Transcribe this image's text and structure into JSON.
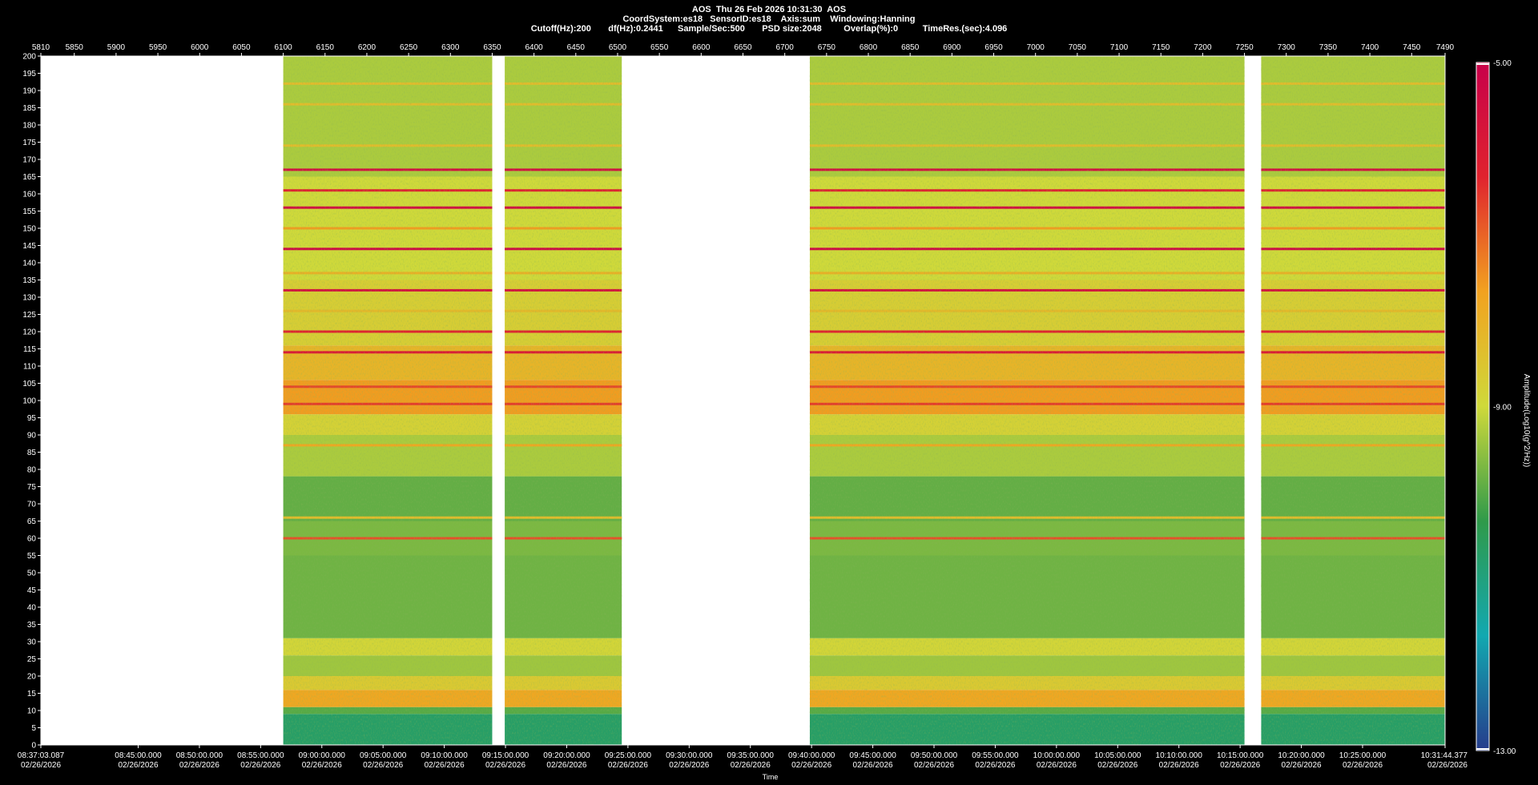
{
  "header": {
    "line1": "AOS  Thu 26 Feb 2026 10:31:30  AOS",
    "line2": "CoordSystem:es18   SensorID:es18    Axis:sum    Windowing:Hanning",
    "line3": "Cutoff(Hz):200       df(Hz):0.2441      Sample/Sec:500       PSD size:2048         Overlap(%):0          TimeRes.(sec):4.096"
  },
  "chart_data": {
    "type": "heatmap",
    "title": "AOS  Thu 26 Feb 2026 10:31:30  AOS",
    "xlabel": "Time",
    "ylabel": "",
    "colorbar_label": "Amplitude(Log10(g^2/Hz))",
    "colorbar_ticks": [
      "-5.00",
      "-9.00",
      "-13.00"
    ],
    "colorbar_range": [
      -13,
      -5
    ],
    "colormap": [
      "#263c8c",
      "#12a8b0",
      "#2f9a4a",
      "#cfd93a",
      "#f2a21f",
      "#e0232e",
      "#c8004a"
    ],
    "ylim": [
      0,
      200
    ],
    "y_ticks": [
      0,
      5,
      10,
      15,
      20,
      25,
      30,
      35,
      40,
      45,
      50,
      55,
      60,
      65,
      70,
      75,
      80,
      85,
      90,
      95,
      100,
      105,
      110,
      115,
      120,
      125,
      130,
      135,
      140,
      145,
      150,
      155,
      160,
      165,
      170,
      175,
      180,
      185,
      190,
      195,
      200
    ],
    "record_axis": {
      "range": [
        5810,
        7490
      ],
      "ticks": [
        5810,
        5850,
        5900,
        5950,
        6000,
        6050,
        6100,
        6150,
        6200,
        6250,
        6300,
        6350,
        6400,
        6450,
        6500,
        6550,
        6600,
        6650,
        6700,
        6750,
        6800,
        6850,
        6900,
        6950,
        7000,
        7050,
        7100,
        7150,
        7200,
        7250,
        7300,
        7350,
        7400,
        7450,
        7490
      ]
    },
    "time_axis": {
      "start": "08:37:03.087",
      "end": "10:31:44.377",
      "date": "02/26/2026",
      "ticks": [
        "08:37:03.087",
        "08:45:00.000",
        "08:50:00.000",
        "08:55:00.000",
        "09:00:00.000",
        "09:05:00.000",
        "09:10:00.000",
        "09:15:00.000",
        "09:20:00.000",
        "09:25:00.000",
        "09:30:00.000",
        "09:35:00.000",
        "09:40:00.000",
        "09:45:00.000",
        "09:50:00.000",
        "09:55:00.000",
        "10:00:00.000",
        "10:05:00.000",
        "10:10:00.000",
        "10:15:00.000",
        "10:20:00.000",
        "10:25:00.000",
        "10:31:44.377"
      ]
    },
    "data_segments": [
      {
        "start": 6100,
        "end": 6350
      },
      {
        "start": 6365,
        "end": 6505
      },
      {
        "start": 6730,
        "end": 7250
      },
      {
        "start": 7270,
        "end": 7490
      }
    ],
    "frequency_bands": [
      {
        "y0": 0,
        "y1": 9,
        "level": -10.7
      },
      {
        "y0": 9,
        "y1": 11,
        "level": -10.0
      },
      {
        "y0": 11,
        "y1": 16,
        "level": -7.8
      },
      {
        "y0": 16,
        "y1": 20,
        "level": -8.6
      },
      {
        "y0": 20,
        "y1": 26,
        "level": -9.4
      },
      {
        "y0": 26,
        "y1": 31,
        "level": -8.9
      },
      {
        "y0": 31,
        "y1": 55,
        "level": -9.8
      },
      {
        "y0": 55,
        "y1": 65,
        "level": -9.7
      },
      {
        "y0": 65,
        "y1": 78,
        "level": -9.9
      },
      {
        "y0": 78,
        "y1": 90,
        "level": -9.3
      },
      {
        "y0": 90,
        "y1": 96,
        "level": -8.8
      },
      {
        "y0": 96,
        "y1": 106,
        "level": -7.6
      },
      {
        "y0": 106,
        "y1": 116,
        "level": -8.1
      },
      {
        "y0": 116,
        "y1": 135,
        "level": -8.7
      },
      {
        "y0": 135,
        "y1": 165,
        "level": -9.0
      },
      {
        "y0": 165,
        "y1": 200,
        "level": -9.3
      }
    ],
    "frequency_lines": [
      {
        "f": 60,
        "level": -6.8
      },
      {
        "f": 66,
        "level": -8.3
      },
      {
        "f": 87,
        "level": -7.8
      },
      {
        "f": 99,
        "level": -6.6
      },
      {
        "f": 104,
        "level": -6.7
      },
      {
        "f": 114,
        "level": -6.0
      },
      {
        "f": 120,
        "level": -6.3
      },
      {
        "f": 126,
        "level": -8.2
      },
      {
        "f": 132,
        "level": -5.6
      },
      {
        "f": 137,
        "level": -8.0
      },
      {
        "f": 144,
        "level": -5.3
      },
      {
        "f": 150,
        "level": -7.6
      },
      {
        "f": 156,
        "level": -5.4
      },
      {
        "f": 161,
        "level": -6.3
      },
      {
        "f": 167,
        "level": -5.5
      },
      {
        "f": 174,
        "level": -8.3
      },
      {
        "f": 186,
        "level": -8.3
      },
      {
        "f": 192,
        "level": -8.3
      }
    ]
  }
}
